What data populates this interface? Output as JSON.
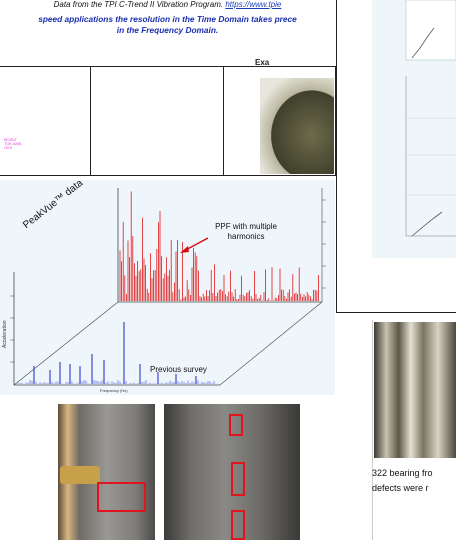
{
  "doc": {
    "source_prefix": "Data from the TPI C-Trend II Vibration Program. ",
    "source_link": "https://www.tpie",
    "note_line1": "speed applications the resolution in the Time Domain takes prece",
    "note_line2": "in the Frequency Domain.",
    "example_title": "Exa",
    "pink_note": "ВОЛЬТ ТОК АМБ ОХЛ"
  },
  "peakvue": {
    "label": "PeakVue™ data",
    "annotation_line1": "PPF with multiple",
    "annotation_line2": "harmonics",
    "previous_label": "Previous survey",
    "y_axis_label": "Acceleration",
    "x_axis_label": "Frequency (Hz)"
  },
  "bearing": {
    "caption_line1": "322 bearing fro",
    "caption_line2": "defects were r"
  },
  "colors": {
    "red_spectrum": "#e01818",
    "blue_spectrum": "#1a24c8",
    "link_blue": "#1a3fb5",
    "highlight_red": "#e0141e"
  }
}
